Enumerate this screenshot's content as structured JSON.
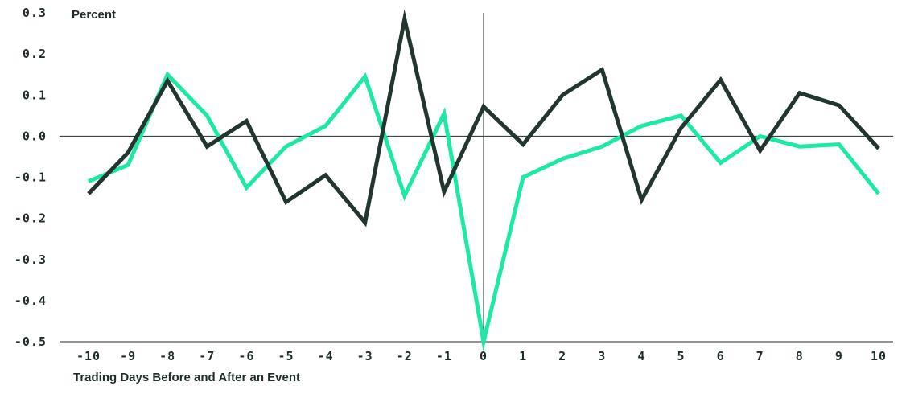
{
  "chart_data": {
    "type": "line",
    "ylabel": "Percent",
    "xlabel": "Trading Days Before and After an Event",
    "ylim": [
      -0.5,
      0.3
    ],
    "y_ticks": [
      "0.3",
      "0.2",
      "0.1",
      "0.0",
      "-0.1",
      "-0.2",
      "-0.3",
      "-0.4",
      "-0.5"
    ],
    "y_tick_values": [
      0.3,
      0.2,
      0.1,
      0.0,
      -0.1,
      -0.2,
      -0.3,
      -0.4,
      -0.5
    ],
    "x": [
      -10,
      -9,
      -8,
      -7,
      -6,
      -5,
      -4,
      -3,
      -2,
      -1,
      0,
      1,
      2,
      3,
      4,
      5,
      6,
      7,
      8,
      9,
      10
    ],
    "x_tick_labels": [
      "-10",
      "-9",
      "-8",
      "-7",
      "-6",
      "-5",
      "-4",
      "-3",
      "-2",
      "-1",
      "0",
      "1",
      "2",
      "3",
      "4",
      "5",
      "6",
      "7",
      "8",
      "9",
      "10"
    ],
    "grid": false,
    "legend": "none",
    "series": [
      {
        "color": "#1de9a4",
        "values": [
          -0.11,
          -0.07,
          0.15,
          0.05,
          -0.125,
          -0.025,
          0.025,
          0.145,
          -0.145,
          0.055,
          -0.5,
          -0.1,
          -0.055,
          -0.025,
          0.025,
          0.05,
          -0.065,
          0.0,
          -0.025,
          -0.02,
          -0.14
        ]
      },
      {
        "color": "#23362e",
        "values": [
          -0.14,
          -0.04,
          0.135,
          -0.025,
          0.037,
          -0.16,
          -0.095,
          -0.21,
          0.285,
          -0.135,
          0.072,
          -0.02,
          0.1,
          0.162,
          -0.155,
          0.02,
          0.137,
          -0.035,
          0.105,
          0.075,
          -0.03
        ]
      }
    ],
    "axis_color": "#1f2d28"
  }
}
